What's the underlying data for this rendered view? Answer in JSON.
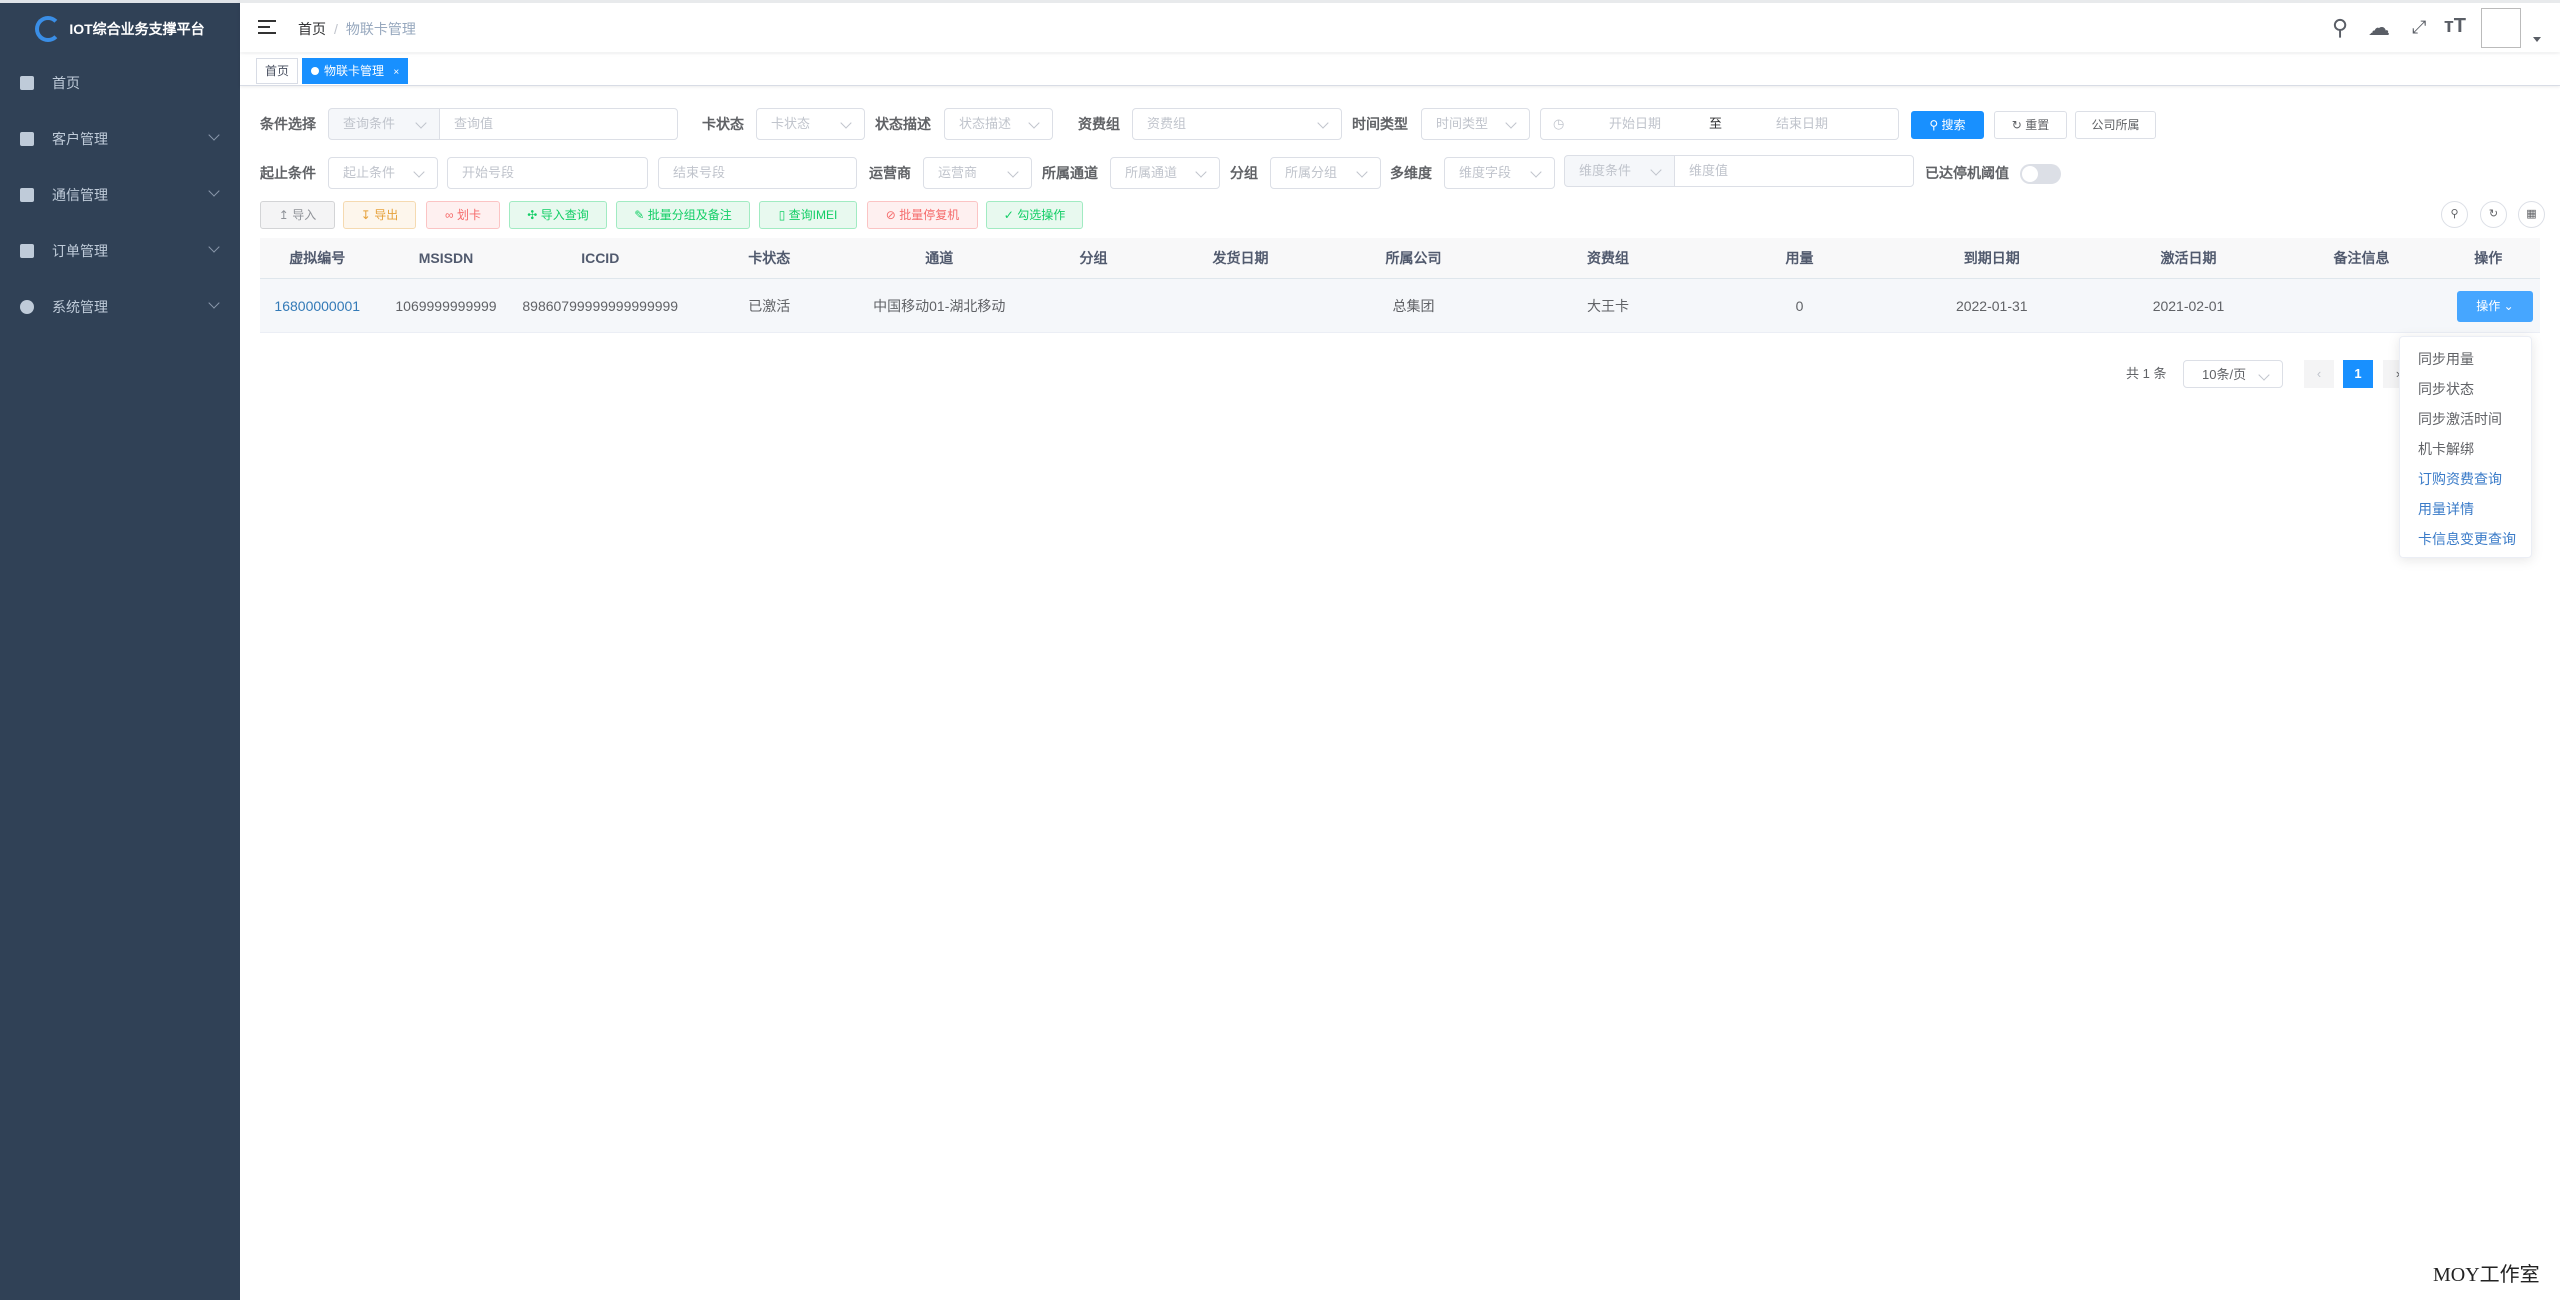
{
  "app": {
    "title": "IOT综合业务支撑平台"
  },
  "sidebar": {
    "items": [
      {
        "label": "首页",
        "icon": "dashboard-icon"
      },
      {
        "label": "客户管理",
        "icon": "monitor-icon"
      },
      {
        "label": "通信管理",
        "icon": "book-icon"
      },
      {
        "label": "订单管理",
        "icon": "bar-chart-icon"
      },
      {
        "label": "系统管理",
        "icon": "gear-icon"
      }
    ]
  },
  "navbar": {
    "breadcrumb": [
      "首页",
      "物联卡管理"
    ],
    "sep": "/"
  },
  "tags": [
    {
      "label": "首页"
    },
    {
      "label": "物联卡管理",
      "close": "×"
    }
  ],
  "filters": {
    "row1": {
      "cond_label": "条件选择",
      "cond_ph": "查询条件",
      "value_ph": "查询值",
      "card_status_label": "卡状态",
      "card_status_ph": "卡状态",
      "status_desc_label": "状态描述",
      "status_desc_ph": "状态描述",
      "tariff_label": "资费组",
      "tariff_ph": "资费组",
      "time_type_label": "时间类型",
      "time_type_ph": "时间类型",
      "start_date_ph": "开始日期",
      "range_sep": "至",
      "end_date_ph": "结束日期"
    },
    "row2": {
      "range_label": "起止条件",
      "range_ph": "起止条件",
      "start_ph": "开始号段",
      "end_ph": "结束号段",
      "operator_label": "运营商",
      "operator_ph": "运营商",
      "channel_label": "所属通道",
      "channel_ph": "所属通道",
      "group_label": "分组",
      "group_ph": "所属分组",
      "dim_label": "多维度",
      "dim_field_ph": "维度字段",
      "dim_cond_ph": "维度条件",
      "dim_value_ph": "维度值",
      "threshold_label": "已达停机阈值",
      "threshold_on": false
    },
    "search": "搜索",
    "reset": "重置",
    "company": "公司所属"
  },
  "actions": [
    {
      "label": "导入",
      "icon": "upload-icon",
      "color": "#909399"
    },
    {
      "label": "导出",
      "icon": "download-icon",
      "color": "#e6a23c"
    },
    {
      "label": "划卡",
      "icon": "link-icon",
      "color": "#f56c6c"
    },
    {
      "label": "导入查询",
      "icon": "move-icon",
      "color": "#13ce66"
    },
    {
      "label": "批量分组及备注",
      "icon": "edit-icon",
      "color": "#13ce66"
    },
    {
      "label": "查询IMEI",
      "icon": "mobile-icon",
      "color": "#13ce66"
    },
    {
      "label": "批量停复机",
      "icon": "stop-icon",
      "color": "#f56c6c"
    },
    {
      "label": "勾选操作",
      "icon": "check-icon",
      "color": "#13ce66"
    }
  ],
  "table": {
    "columns": [
      "虚拟编号",
      "MSISDN",
      "ICCID",
      "卡状态",
      "通道",
      "分组",
      "发货日期",
      "所属公司",
      "资费组",
      "用量",
      "到期日期",
      "激活日期",
      "备注信息",
      "操作"
    ],
    "rows": [
      [
        "16800000001",
        "1069999999999",
        "89860799999999999999",
        "已激活",
        "中国移动01-湖北移动",
        "",
        "",
        "总集团",
        "大王卡",
        "0",
        "2022-01-31",
        "2021-02-01",
        "",
        "操作"
      ]
    ]
  },
  "dropdown": [
    "同步用量",
    "同步状态",
    "同步激活时间",
    "机卡解绑",
    "订购资费查询",
    "用量详情",
    "卡信息变更查询"
  ],
  "pagination": {
    "total": "共 1 条",
    "page_size": "10条/页",
    "current": "1"
  },
  "watermark": "MOY工作室",
  "colors": {
    "sidebar": "#304156",
    "primary": "#1890ff",
    "link": "#337ab7"
  }
}
